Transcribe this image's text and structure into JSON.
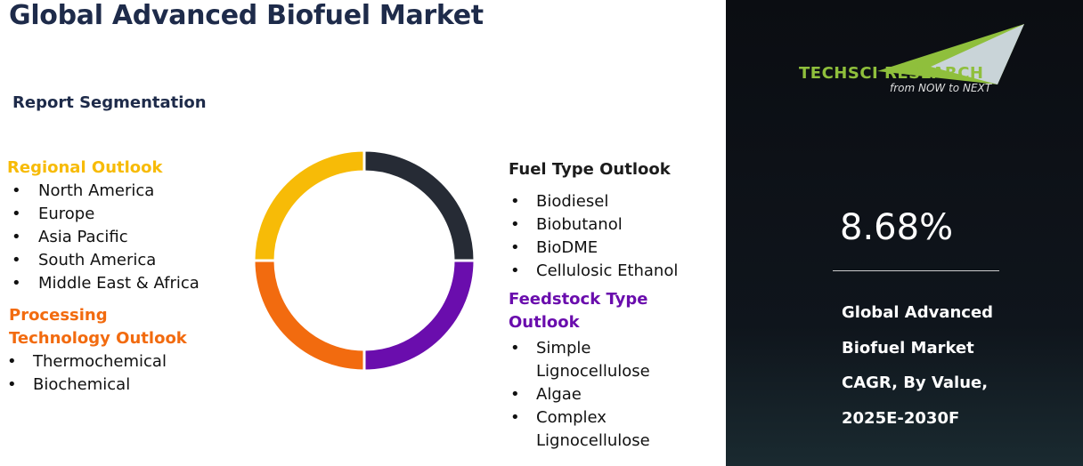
{
  "header": {
    "title": "Global Advanced Biofuel Market",
    "subtitle": "Report Segmentation"
  },
  "sections": [
    {
      "heading": "Regional Outlook",
      "items": [
        "North America",
        "Europe",
        "Asia Pacific",
        "South America",
        "Middle East & Africa"
      ]
    },
    {
      "heading": "Processing Technology Outlook",
      "items": [
        "Thermochemical",
        "Biochemical"
      ]
    },
    {
      "heading": "Fuel Type Outlook",
      "items": [
        "Biodiesel",
        "Biobutanol",
        "BioDME",
        "Cellulosic Ethanol"
      ]
    },
    {
      "heading": "Feedstock Type Outlook",
      "items": [
        "Simple Lignocellulose",
        "Algae",
        "Complex Lignocellulose"
      ]
    }
  ],
  "panel": {
    "logo": "TECHSCI RESEARCH",
    "tagline": "from NOW to NEXT",
    "stat": "8.68%",
    "description": [
      "Global Advanced",
      "Biofuel  Market",
      "CAGR, By Value,",
      "2025E-2030F"
    ]
  }
}
